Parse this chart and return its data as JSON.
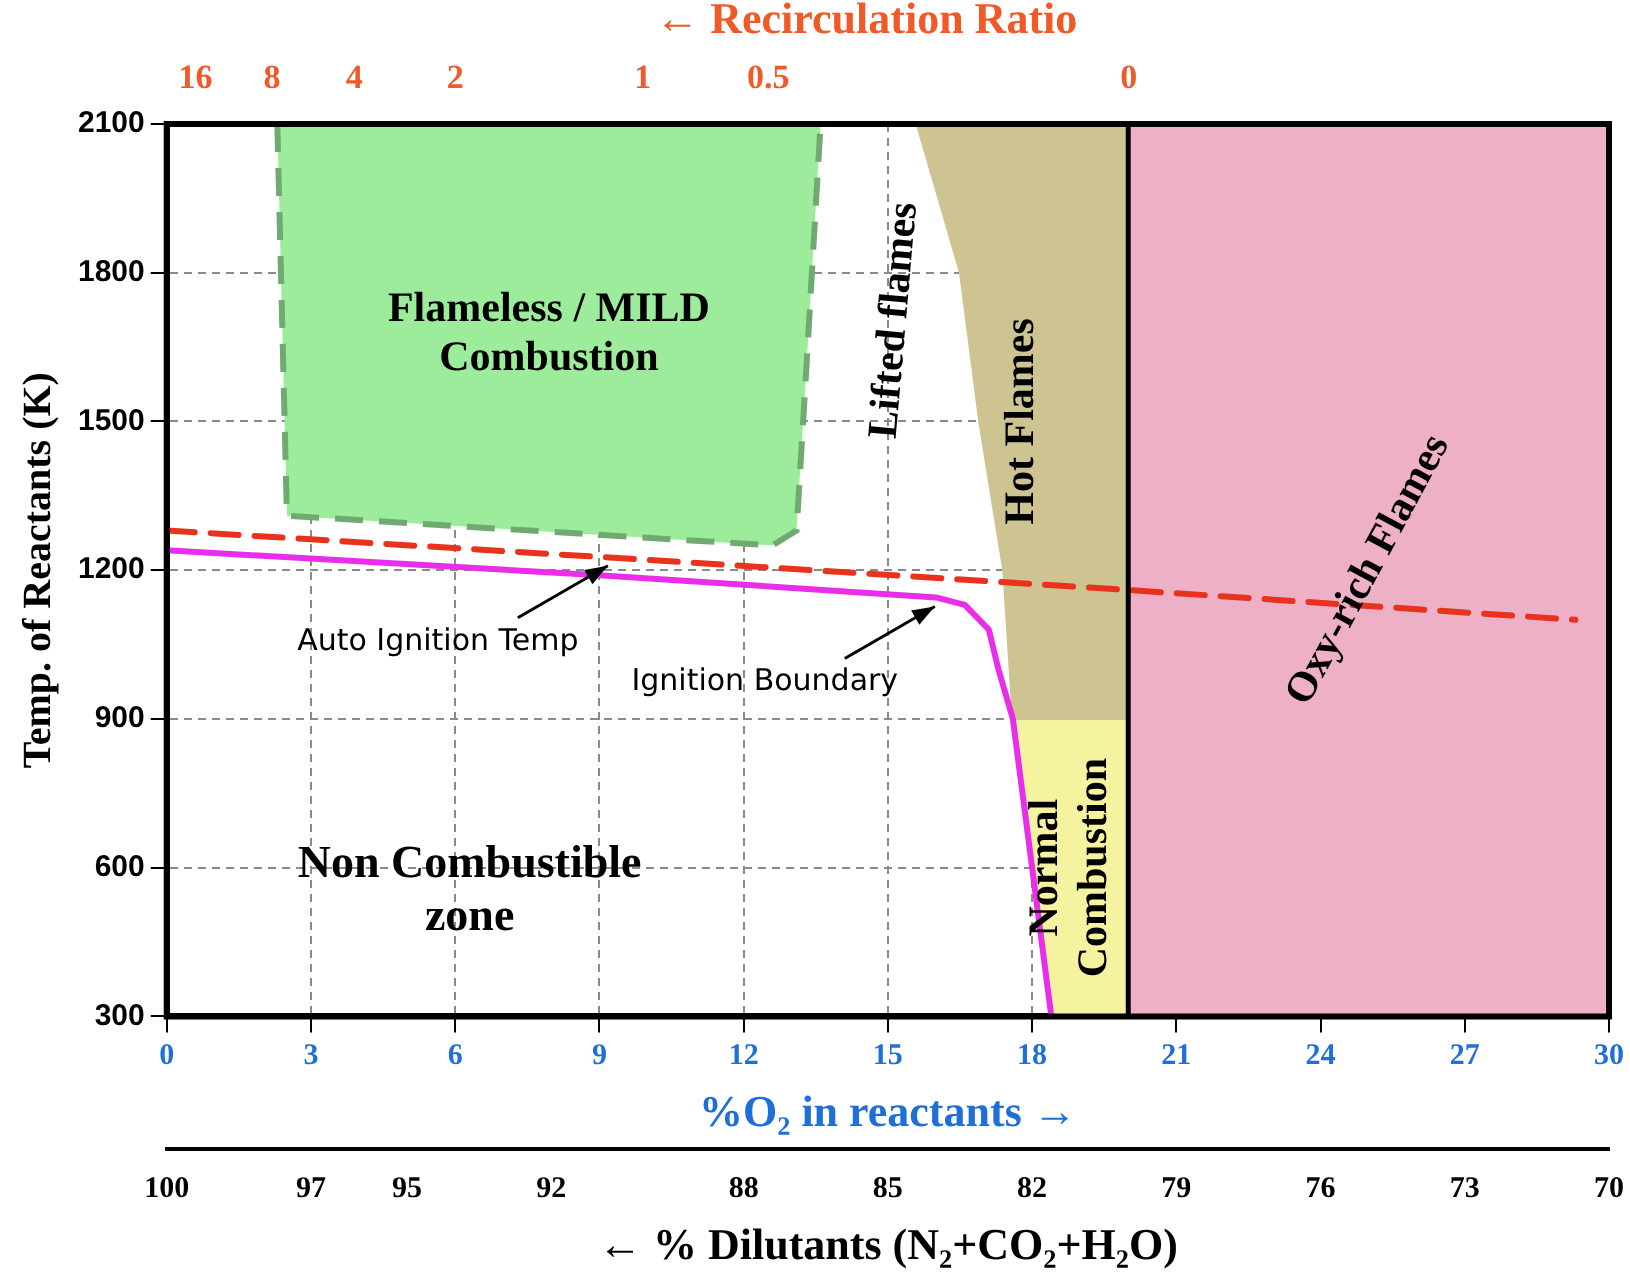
{
  "chart_data": {
    "type": "line",
    "xlabel": "%O₂ in reactants →",
    "ylabel": "Temp. of Reactants (K)",
    "x2label": "← % Dilutants (N₂+CO₂+H₂O)",
    "xlim": [
      0,
      30
    ],
    "xticks": [
      0,
      3,
      6,
      9,
      12,
      15,
      18,
      21,
      24,
      27,
      30
    ],
    "x2lim": [
      100,
      70
    ],
    "x2ticks": [
      100,
      97,
      95,
      92,
      88,
      85,
      82,
      79,
      76,
      73,
      70
    ],
    "ylim": [
      300,
      2100
    ],
    "yticks": [
      300,
      600,
      900,
      1200,
      1500,
      1800,
      2100
    ],
    "grid": true,
    "legend": false,
    "ref_lines": [
      {
        "axis": "x",
        "value": 20,
        "color": "#000000"
      }
    ],
    "annotations": [
      {
        "text": "Auto Ignition Temp",
        "x": 9.3,
        "y": 1225
      },
      {
        "text": "Ignition Boundary",
        "x": 16.1,
        "y": 1143
      },
      "Lifted flames",
      "Non Combustible zone",
      "← Recirculation Ratio",
      "16",
      "8",
      "4",
      "2",
      "1",
      "0.5",
      "0"
    ],
    "series": [
      {
        "type": "area",
        "name": "Flameless / MILD Combustion",
        "color": "#9cec9c",
        "line_style": "dashed",
        "x": [
          2.3,
          2.5,
          12.6,
          13.1,
          13.3,
          13.6,
          2.3
        ],
        "values": [
          2100,
          1310,
          1250,
          1280,
          1600,
          2100,
          2100
        ]
      },
      {
        "type": "area",
        "name": "Hot Flames",
        "color": "#cdc492",
        "x": [
          15.6,
          16.5,
          16.9,
          17.4,
          17.6,
          20,
          20,
          15.6
        ],
        "values": [
          2100,
          1800,
          1500,
          1200,
          900,
          900,
          2100,
          2100
        ]
      },
      {
        "type": "area",
        "name": "Normal Combustion",
        "color": "#f5f3a0",
        "x": [
          17.6,
          18.4,
          20,
          20,
          17.6
        ],
        "values": [
          900,
          300,
          300,
          900,
          900
        ]
      },
      {
        "type": "area",
        "name": "Oxy-rich Flames",
        "color": "#eeb0c6",
        "x": [
          20,
          30,
          30,
          20,
          20
        ],
        "values": [
          300,
          300,
          2100,
          2100,
          300
        ]
      },
      {
        "color": "#e8321e",
        "line_style": "dashed",
        "x": [
          0,
          9.3,
          20,
          29.3
        ],
        "values": [
          1280,
          1225,
          1160,
          1100
        ]
      },
      {
        "color": "#e82ee8",
        "x": [
          0,
          9,
          16,
          16.6,
          17.1,
          17.3,
          17.6,
          18.4
        ],
        "values": [
          1240,
          1190,
          1145,
          1130,
          1080,
          1000,
          900,
          300
        ]
      }
    ]
  }
}
